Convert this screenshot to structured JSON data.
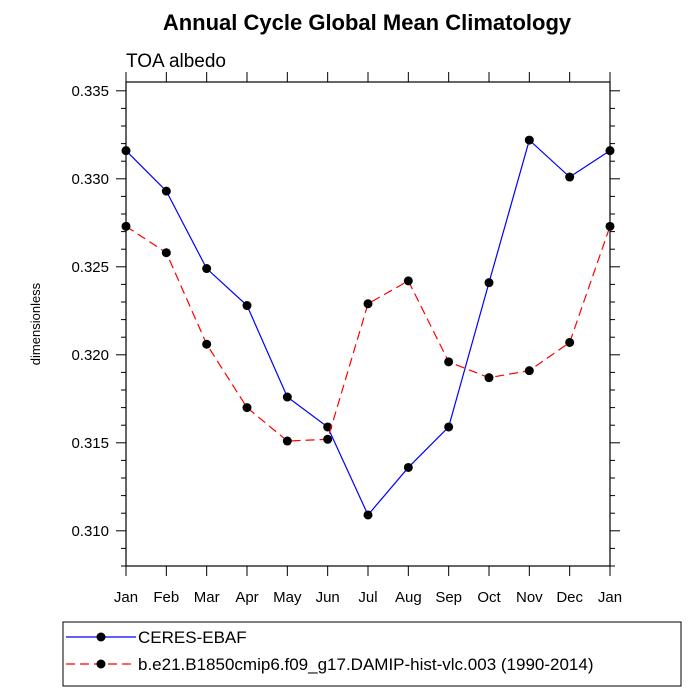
{
  "chart_data": {
    "type": "line",
    "title": "Annual Cycle Global Mean Climatology",
    "subtitle": "TOA albedo",
    "xlabel": "",
    "ylabel": "dimensionless",
    "categories": [
      "Jan",
      "Feb",
      "Mar",
      "Apr",
      "May",
      "Jun",
      "Jul",
      "Aug",
      "Sep",
      "Oct",
      "Nov",
      "Dec",
      "Jan"
    ],
    "ylim": [
      0.308,
      0.3355
    ],
    "yticks": [
      0.31,
      0.315,
      0.32,
      0.325,
      0.33,
      0.335
    ],
    "ytick_labels": [
      "0.310",
      "0.315",
      "0.320",
      "0.325",
      "0.330",
      "0.335"
    ],
    "grid": false,
    "legend_position": "bottom-left",
    "series": [
      {
        "name": "CERES-EBAF",
        "color": "#0000ff",
        "style": "solid",
        "marker": "circle",
        "values": [
          0.3316,
          0.3293,
          0.3249,
          0.3228,
          0.3176,
          0.3159,
          0.3109,
          0.3136,
          0.3159,
          0.3241,
          0.3322,
          0.3301,
          0.3316
        ]
      },
      {
        "name": "b.e21.B1850cmip6.f09_g17.DAMIP-hist-vlc.003 (1990-2014)",
        "color": "#ff0000",
        "style": "dashed",
        "marker": "circle",
        "values": [
          0.3273,
          0.3258,
          0.3206,
          0.317,
          0.3151,
          0.3152,
          0.3229,
          0.3242,
          0.3196,
          0.3187,
          0.3191,
          0.3207,
          0.3273
        ]
      }
    ]
  }
}
